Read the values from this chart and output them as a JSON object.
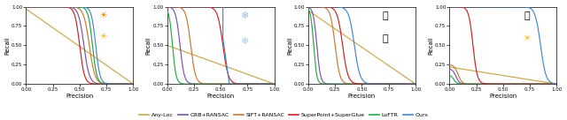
{
  "colors": {
    "anyloc": "#C8A84B",
    "orb": "#7B52A8",
    "sift": "#C87833",
    "superpoint": "#CC2222",
    "loftr": "#22AA44",
    "ours": "#4488CC"
  },
  "legend_labels": [
    "Any-Loc",
    "ORB+RANSAC",
    "SIFT+RANSAC",
    "SuperPoint+SuperGlue",
    "LoFTR",
    "Ours"
  ],
  "xlabel": "Precision",
  "ylabel": "Recall",
  "figsize": [
    6.4,
    1.36
  ],
  "dpi": 100
}
